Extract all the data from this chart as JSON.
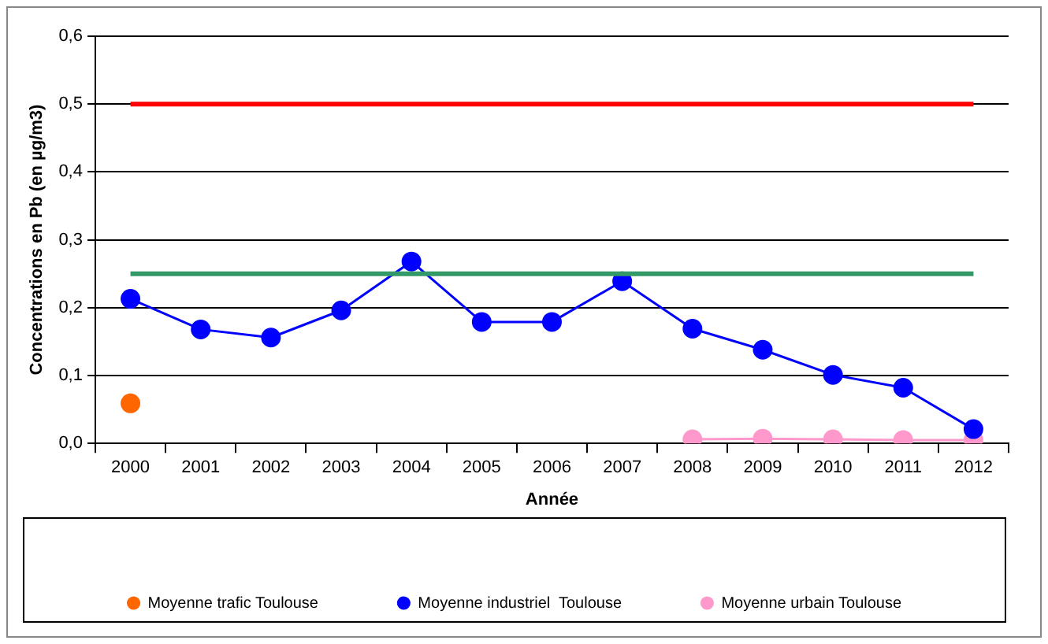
{
  "chart_data": {
    "type": "line",
    "xlabel": "Année",
    "ylabel": "Concentrations en Pb (en µg/m3)",
    "categories": [
      "2000",
      "2001",
      "2002",
      "2003",
      "2004",
      "2005",
      "2006",
      "2007",
      "2008",
      "2009",
      "2010",
      "2011",
      "2012"
    ],
    "series": [
      {
        "name": "Moyenne trafic Toulouse",
        "color": "#ff6600",
        "values": [
          0.059,
          null,
          null,
          null,
          null,
          null,
          null,
          null,
          null,
          null,
          null,
          null,
          null
        ]
      },
      {
        "name": "Moyenne industriel  Toulouse",
        "color": "#0000ff",
        "values": [
          0.213,
          0.168,
          0.156,
          0.196,
          0.268,
          0.179,
          0.179,
          0.239,
          0.169,
          0.138,
          0.101,
          0.082,
          0.021
        ]
      },
      {
        "name": "Moyenne urbain Toulouse",
        "color": "#ff99cc",
        "values": [
          null,
          null,
          null,
          null,
          null,
          null,
          null,
          null,
          0.006,
          0.007,
          0.006,
          0.005,
          0.005
        ]
      }
    ],
    "ref_lines": [
      {
        "axis": "y",
        "value": 0.5,
        "color": "#ff0000"
      },
      {
        "axis": "y",
        "value": 0.25,
        "color": "#339966"
      }
    ],
    "ylim": [
      0,
      0.6
    ],
    "yticks": [
      {
        "value": 0,
        "label": "0,0"
      },
      {
        "value": 0.1,
        "label": "0,1"
      },
      {
        "value": 0.2,
        "label": "0,2"
      },
      {
        "value": 0.3,
        "label": "0,3"
      },
      {
        "value": 0.4,
        "label": "0,4"
      },
      {
        "value": 0.5,
        "label": "0,5"
      },
      {
        "value": 0.6,
        "label": "0,6"
      }
    ],
    "grid": "y",
    "legend": "bottom",
    "marker": "circle",
    "line_style": "solid"
  }
}
